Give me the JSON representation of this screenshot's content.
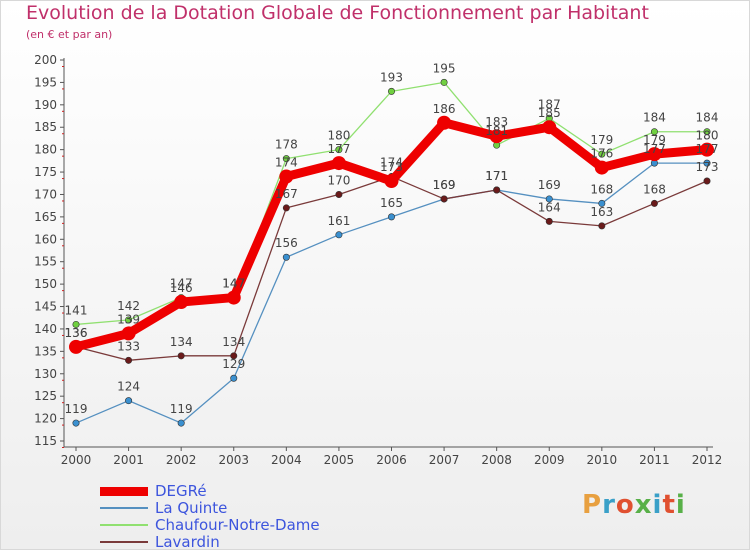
{
  "title": "Evolution de la Dotation Globale de Fonctionnement par Habitant",
  "subtitle": "(en € et par an)",
  "logo": {
    "text": "Proxiti",
    "colors": [
      "#e8a040",
      "#3aa0c8",
      "#e05030",
      "#58b048",
      "#3aa0c8",
      "#e05030",
      "#58b048"
    ]
  },
  "chart_data": {
    "type": "line",
    "title": "Evolution de la Dotation Globale de Fonctionnement par Habitant",
    "subtitle": "(en € et par an)",
    "x": [
      "2000",
      "2001",
      "2002",
      "2003",
      "2004",
      "2005",
      "2006",
      "2007",
      "2008",
      "2009",
      "2010",
      "2011",
      "2012"
    ],
    "ylim": [
      115,
      200
    ],
    "yticks": [
      115,
      120,
      125,
      130,
      135,
      140,
      145,
      150,
      155,
      160,
      165,
      170,
      175,
      180,
      185,
      190,
      195,
      200
    ],
    "grid": false,
    "legend": "bottom-left",
    "series": [
      {
        "name": "La Quinte",
        "color": "#5590c0",
        "marker": "#3a90d0",
        "width": "thin",
        "values": [
          119,
          124,
          119,
          129,
          156,
          161,
          165,
          169,
          171,
          169,
          168,
          177,
          177
        ]
      },
      {
        "name": "Chaufour-Notre-Dame",
        "color": "#90e070",
        "marker": "#70d040",
        "width": "thin",
        "values": [
          141,
          142,
          147,
          147,
          178,
          180,
          193,
          195,
          181,
          187,
          179,
          184,
          184
        ]
      },
      {
        "name": "Lavardin",
        "color": "#7a3a3a",
        "marker": "#6a1a1a",
        "width": "thin",
        "values": [
          136,
          133,
          134,
          134,
          167,
          170,
          174,
          169,
          171,
          164,
          163,
          168,
          173
        ]
      },
      {
        "name": "DEGRé",
        "color": "#ee0000",
        "marker": "#ee0000",
        "width": "thick",
        "values": [
          136,
          139,
          146,
          147,
          174,
          177,
          173,
          186,
          183,
          185,
          176,
          179,
          180
        ]
      }
    ],
    "legend_order": [
      "DEGRé",
      "La Quinte",
      "Chaufour-Notre-Dame",
      "Lavardin"
    ]
  }
}
